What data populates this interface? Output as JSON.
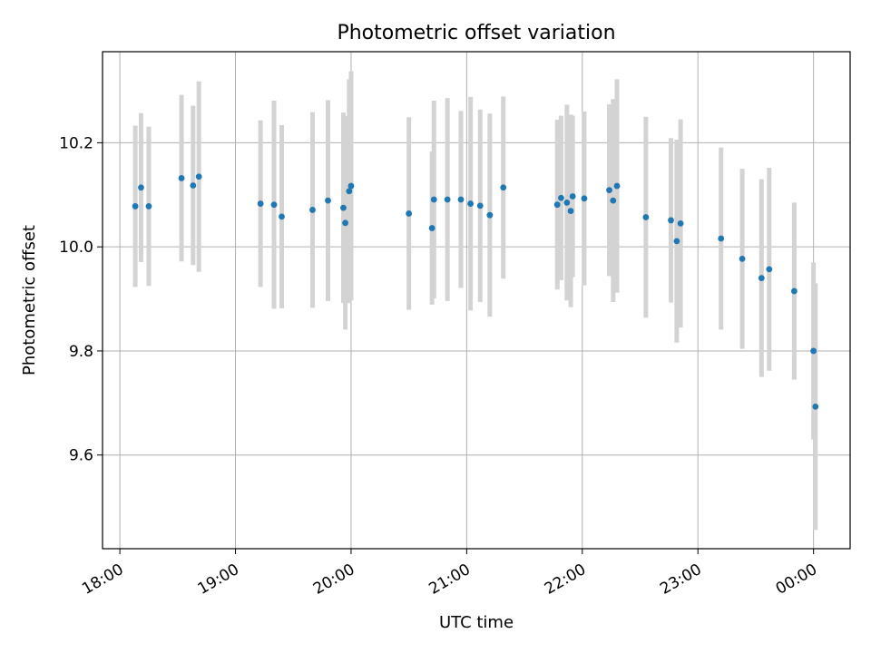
{
  "chart_data": {
    "type": "scatter",
    "title": "Photometric offset variation",
    "xlabel": "UTC time",
    "ylabel": "Photometric offset",
    "xlim": [
      "17:51",
      "00:19"
    ],
    "ylim": [
      9.42,
      10.375
    ],
    "x_ticks": [
      "18:00",
      "19:00",
      "20:00",
      "21:00",
      "22:00",
      "23:00",
      "00:00"
    ],
    "y_ticks": [
      9.6,
      9.8,
      10.0,
      10.2
    ],
    "grid": true,
    "colors": {
      "point": "#1f77b4",
      "errorbar": "#d3d3d3",
      "grid": "#b0b0b0"
    },
    "series": [
      {
        "x": [
          "18:08",
          "18:11",
          "18:15",
          "18:32",
          "18:38",
          "18:41",
          "19:13",
          "19:20",
          "19:24",
          "19:40",
          "19:48",
          "19:56",
          "19:57",
          "19:59",
          "20:00",
          "20:30",
          "20:42",
          "20:43",
          "20:50",
          "20:57",
          "21:02",
          "21:07",
          "21:12",
          "21:19",
          "21:47",
          "21:49",
          "21:52",
          "21:54",
          "21:55",
          "22:01",
          "22:14",
          "22:16",
          "22:18",
          "22:33",
          "22:46",
          "22:49",
          "22:51",
          "23:12",
          "23:23",
          "23:33",
          "23:37",
          "23:50",
          "00:00",
          "00:01"
        ],
        "y": [
          10.078,
          10.114,
          10.078,
          10.132,
          10.118,
          10.135,
          10.083,
          10.081,
          10.058,
          10.071,
          10.089,
          10.075,
          10.046,
          10.107,
          10.117,
          10.064,
          10.036,
          10.091,
          10.091,
          10.091,
          10.083,
          10.079,
          10.061,
          10.114,
          10.081,
          10.094,
          10.085,
          10.069,
          10.097,
          10.093,
          10.109,
          10.089,
          10.117,
          10.057,
          10.051,
          10.011,
          10.045,
          10.016,
          9.977,
          9.94,
          9.957,
          9.915,
          9.8,
          9.693
        ],
        "err": [
          0.155,
          0.143,
          0.153,
          0.16,
          0.153,
          0.183,
          0.16,
          0.2,
          0.176,
          0.188,
          0.193,
          0.183,
          0.205,
          0.215,
          0.22,
          0.185,
          0.147,
          0.19,
          0.195,
          0.17,
          0.205,
          0.185,
          0.195,
          0.175,
          0.163,
          0.158,
          0.188,
          0.185,
          0.155,
          0.167,
          0.165,
          0.195,
          0.205,
          0.193,
          0.158,
          0.195,
          0.2,
          0.175,
          0.173,
          0.19,
          0.195,
          0.17,
          0.17,
          0.237
        ]
      }
    ]
  }
}
